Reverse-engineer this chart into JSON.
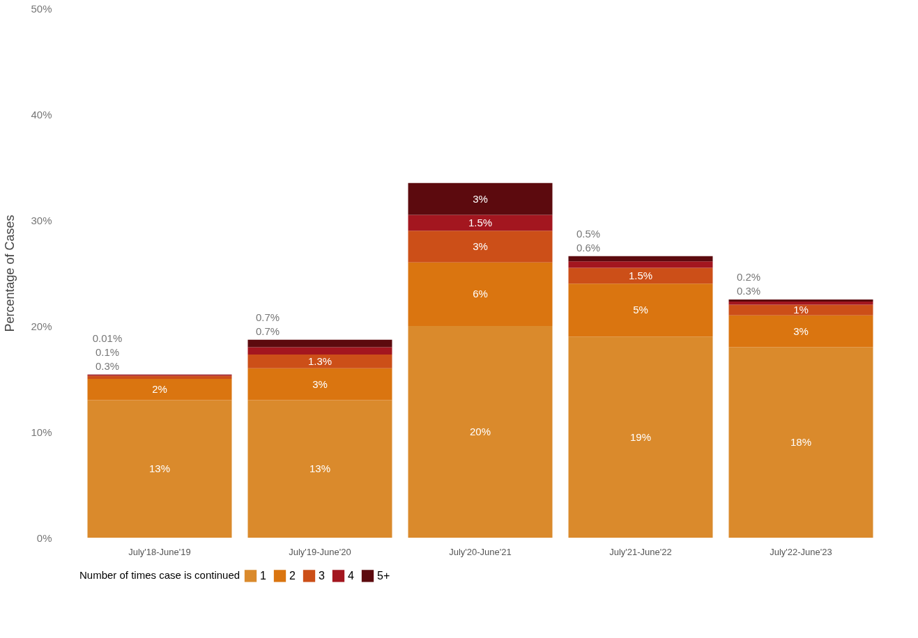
{
  "chart_data": {
    "type": "bar",
    "stacked": true,
    "ylabel": "Percentage of Cases",
    "legend_title": "Number of times case is continued",
    "legend": "bottom",
    "grid": false,
    "categories": [
      "July'18-June'19",
      "July'19-June'20",
      "July'20-June'21",
      "July'21-June'22",
      "July'22-June'23"
    ],
    "ylim": [
      0,
      50
    ],
    "yticks": [
      {
        "value": 0,
        "label": "0%"
      },
      {
        "value": 10,
        "label": "10%"
      },
      {
        "value": 20,
        "label": "20%"
      },
      {
        "value": 30,
        "label": "30%"
      },
      {
        "value": 40,
        "label": "40%"
      },
      {
        "value": 50,
        "label": "50%"
      }
    ],
    "series": [
      {
        "name": "1",
        "color": "#da8a2c",
        "values": [
          13,
          13,
          20,
          19,
          18
        ],
        "value_labels": [
          "13%",
          "13%",
          "20%",
          "19%",
          "18%"
        ]
      },
      {
        "name": "2",
        "color": "#da7510",
        "values": [
          2,
          3,
          6,
          5,
          3
        ],
        "value_labels": [
          "2%",
          "3%",
          "6%",
          "5%",
          "3%"
        ]
      },
      {
        "name": "3",
        "color": "#cc4f18",
        "values": [
          0.3,
          1.3,
          3,
          1.5,
          1
        ],
        "value_labels": [
          "0.3%",
          "1.3%",
          "3%",
          "1.5%",
          "1%"
        ]
      },
      {
        "name": "4",
        "color": "#a3161f",
        "values": [
          0.1,
          0.7,
          1.5,
          0.6,
          0.3
        ],
        "value_labels": [
          "0.1%",
          "0.7%",
          "1.5%",
          "0.6%",
          "0.3%"
        ]
      },
      {
        "name": "5+",
        "color": "#5c0a0e",
        "values": [
          0.01,
          0.7,
          3,
          0.5,
          0.2
        ],
        "value_labels": [
          "0.01%",
          "0.7%",
          "3%",
          "0.5%",
          "0.2%"
        ]
      }
    ]
  }
}
